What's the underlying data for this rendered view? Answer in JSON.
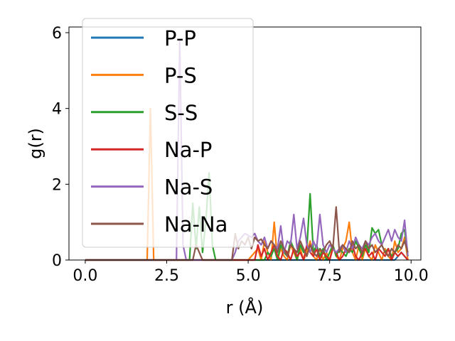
{
  "chart_data": {
    "type": "line",
    "xlabel": "r (Å)",
    "ylabel": "g(r)",
    "xlim": [
      -0.5,
      10.3
    ],
    "ylim": [
      0,
      6.15
    ],
    "xticks": [
      0.0,
      2.5,
      5.0,
      7.5,
      10.0
    ],
    "xtick_labels": [
      "0.0",
      "2.5",
      "5.0",
      "7.5",
      "10.0"
    ],
    "yticks": [
      0,
      2,
      4,
      6
    ],
    "ytick_labels": [
      "0",
      "2",
      "4",
      "6"
    ],
    "grid": false,
    "legend_position": "upper-left",
    "series": [
      {
        "name": "P-P",
        "color": "#1f77b4",
        "x": [
          0,
          9.5,
          9.6,
          9.7,
          9.8,
          9.9
        ],
        "y": [
          0,
          0,
          0.1,
          0.2,
          0.1,
          0
        ]
      },
      {
        "name": "P-S",
        "color": "#ff7f0e",
        "x": [
          0,
          1.9,
          2.0,
          2.1,
          2.2,
          5.0,
          5.3,
          5.4,
          5.5,
          5.6,
          5.7,
          5.8,
          5.9,
          6.0,
          6.1,
          6.2,
          6.3,
          6.4,
          6.5,
          6.6,
          6.7,
          6.8,
          6.9,
          7.0,
          7.1,
          7.2,
          7.3,
          7.4,
          7.5,
          7.6,
          7.7,
          7.8,
          7.9,
          8.0,
          8.1,
          8.2,
          8.3,
          8.4,
          8.5,
          8.6,
          8.7,
          8.8,
          8.9,
          9.0,
          9.1,
          9.2,
          9.3,
          9.4,
          9.5,
          9.6,
          9.7,
          9.8,
          9.9
        ],
        "y": [
          0,
          0,
          4.0,
          0,
          0,
          0,
          0.3,
          0,
          0.5,
          0.2,
          0,
          1.0,
          0,
          0.3,
          0.1,
          0,
          0.4,
          0.2,
          0,
          0.3,
          0,
          0.2,
          0.5,
          0.1,
          0,
          0.3,
          0,
          0.2,
          0,
          0.4,
          0.1,
          0,
          0.3,
          0.5,
          1.0,
          0.2,
          0,
          0.4,
          0,
          0.3,
          0.1,
          0,
          0.4,
          0.2,
          0,
          0.3,
          0.1,
          0,
          0.5,
          0.2,
          0.3,
          0.6,
          0
        ]
      },
      {
        "name": "S-S",
        "color": "#2ca02c",
        "x": [
          0,
          3.2,
          3.3,
          3.4,
          3.5,
          3.6,
          3.7,
          3.8,
          3.9,
          4.0,
          5.5,
          5.6,
          5.7,
          5.8,
          5.9,
          6.0,
          6.1,
          6.2,
          6.3,
          6.4,
          6.5,
          6.6,
          6.7,
          6.8,
          6.9,
          7.0,
          7.1,
          7.2,
          7.3,
          7.4,
          7.5,
          7.6,
          7.7,
          7.8,
          7.9,
          8.0,
          8.1,
          8.2,
          8.3,
          8.4,
          8.5,
          8.6,
          8.7,
          8.8,
          8.9,
          9.0,
          9.1,
          9.2,
          9.3,
          9.4,
          9.5,
          9.6,
          9.7,
          9.8,
          9.9
        ],
        "y": [
          0,
          0,
          1.5,
          0.3,
          1.4,
          0.2,
          1.0,
          2.3,
          0.4,
          0,
          0,
          0.2,
          0.1,
          0.3,
          0,
          0.4,
          0.2,
          0.1,
          0.5,
          0.3,
          0,
          0.4,
          0.2,
          0.3,
          1.75,
          0.2,
          0.4,
          0.1,
          0.3,
          0,
          0.2,
          0.4,
          0.1,
          0.3,
          0.2,
          0.1,
          0.3,
          0.2,
          0.5,
          0.3,
          0.1,
          0.4,
          0.2,
          0.85,
          0.7,
          0.8,
          0.4,
          0.2,
          0.3,
          0.1,
          0.2,
          0.3,
          0.7,
          0.8,
          0.1
        ]
      },
      {
        "name": "Na-P",
        "color": "#d62728",
        "x": [
          0,
          5.2,
          5.3,
          5.4,
          5.5,
          5.6,
          5.7,
          5.8,
          5.9,
          6.0,
          6.1,
          6.2,
          6.3,
          6.4,
          6.5,
          6.6,
          6.7,
          6.8,
          6.9,
          7.0,
          7.1,
          7.2,
          7.3,
          7.4,
          7.5,
          7.6,
          7.7,
          7.8,
          7.9,
          8.0,
          8.1,
          8.2,
          8.3,
          8.4,
          8.5,
          8.6,
          8.7,
          8.8,
          8.9,
          9.0,
          9.1,
          9.2,
          9.3,
          9.4,
          9.5,
          9.6,
          9.7,
          9.8,
          9.9
        ],
        "y": [
          0,
          0,
          0.4,
          0.1,
          0.3,
          0,
          0.2,
          0.4,
          0.1,
          0,
          0.3,
          0.2,
          0,
          0.3,
          0.1,
          0.2,
          0,
          0.4,
          0.2,
          0.1,
          0.3,
          0,
          0.2,
          0.1,
          0,
          0.3,
          0.2,
          0,
          0.1,
          0.3,
          0.2,
          0.4,
          0.1,
          0,
          0.2,
          0.3,
          0.1,
          0.2,
          0,
          0.3,
          0.2,
          0.1,
          0.3,
          0,
          0.2,
          0.1,
          0.2,
          0.1,
          0
        ]
      },
      {
        "name": "Na-S",
        "color": "#9467bd",
        "x": [
          0,
          2.8,
          2.9,
          3.0,
          3.1,
          4.5,
          4.6,
          4.7,
          4.8,
          4.9,
          5.0,
          5.1,
          5.2,
          5.3,
          5.4,
          5.5,
          5.6,
          5.7,
          5.8,
          5.9,
          6.0,
          6.1,
          6.2,
          6.3,
          6.4,
          6.5,
          6.6,
          6.7,
          6.8,
          6.9,
          7.0,
          7.1,
          7.2,
          7.3,
          7.4,
          7.5,
          7.6,
          7.7,
          7.8,
          7.9,
          8.0,
          8.1,
          8.2,
          8.3,
          8.4,
          8.5,
          8.6,
          8.7,
          8.8,
          8.9,
          9.0,
          9.1,
          9.2,
          9.3,
          9.4,
          9.5,
          9.6,
          9.7,
          9.8,
          9.9
        ],
        "y": [
          0,
          0,
          5.8,
          0.4,
          0,
          0,
          0.2,
          0.5,
          0.6,
          0.7,
          0.65,
          0.6,
          0.7,
          0.5,
          0.4,
          0.6,
          0.3,
          0.5,
          0.4,
          0.3,
          0.9,
          0.2,
          0.5,
          0.4,
          1.2,
          0.3,
          0.6,
          1.1,
          0.4,
          0.2,
          0.5,
          0.3,
          1.2,
          0.4,
          0.2,
          0.4,
          0.3,
          0.2,
          0.3,
          0.4,
          0.2,
          0.5,
          0.3,
          0.6,
          0.4,
          0.3,
          0.5,
          0.4,
          0.6,
          0.7,
          0.5,
          0.4,
          0.6,
          0.8,
          0.5,
          0.8,
          0.6,
          0.5,
          1.05,
          0.1
        ]
      },
      {
        "name": "Na-Na",
        "color": "#8c564b",
        "x": [
          0,
          3.3,
          3.4,
          3.5,
          3.6,
          4.5,
          4.6,
          4.7,
          4.8,
          4.9,
          5.0,
          5.1,
          5.2,
          5.3,
          5.4,
          5.5,
          5.6,
          5.7,
          5.8,
          5.9,
          6.0,
          6.1,
          6.2,
          6.3,
          6.4,
          6.5,
          6.6,
          6.7,
          6.8,
          6.9,
          7.0,
          7.1,
          7.2,
          7.3,
          7.4,
          7.5,
          7.6,
          7.7,
          7.8,
          7.9,
          8.0,
          8.1,
          8.2,
          8.3,
          8.4,
          8.5,
          8.6,
          8.7,
          8.8,
          8.9,
          9.0,
          9.1,
          9.2,
          9.3,
          9.4,
          9.5,
          9.6,
          9.7,
          9.8,
          9.9
        ],
        "y": [
          0,
          0,
          0.4,
          0.2,
          0,
          0,
          0.7,
          0.3,
          0.5,
          0.4,
          0.6,
          0.3,
          0.6,
          0.5,
          0.55,
          0.4,
          0.3,
          0.5,
          0.4,
          0.2,
          0.5,
          0.3,
          0.1,
          0.4,
          0.3,
          0.2,
          0.5,
          0.3,
          0.1,
          0.4,
          0.2,
          0.1,
          0.3,
          0.2,
          0.4,
          0.5,
          0.3,
          1.4,
          0.2,
          0.4,
          0.3,
          0.2,
          0.5,
          0.3,
          0.4,
          0.2,
          0.5,
          0.3,
          0.4,
          0.2,
          0.3,
          0.4,
          0.2,
          0.1,
          0.3,
          0.2,
          0.4,
          0.3,
          0.5,
          0.2
        ]
      }
    ]
  }
}
